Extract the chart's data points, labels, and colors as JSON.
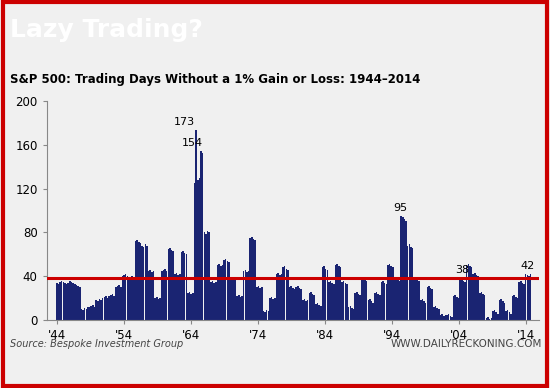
{
  "title_main": "Lazy Trading?",
  "subtitle": "S&P 500: Trading Days Without a 1% Gain or Loss: 1944–2014",
  "source_text": "Source: Bespoke Investment Group",
  "watermark": "WWW.DAILYRECKONING.COM",
  "bar_color": "#1a2472",
  "line_color": "#cc0000",
  "line_y": 38,
  "xlabel_ticks": [
    "'44",
    "'54",
    "'64",
    "'74",
    "'84",
    "'94",
    "'04",
    "'14"
  ],
  "xlabel_tick_years": [
    1944,
    1954,
    1964,
    1974,
    1984,
    1994,
    2004,
    2014
  ],
  "ylim": [
    0,
    200
  ],
  "yticks": [
    0,
    40,
    80,
    120,
    160,
    200
  ],
  "annotations": [
    {
      "x": 1963.0,
      "value": 173,
      "label": "173",
      "ha": "center"
    },
    {
      "x": 1964.25,
      "value": 154,
      "label": "154",
      "ha": "center"
    },
    {
      "x": 1995.25,
      "value": 95,
      "label": "95",
      "ha": "center"
    },
    {
      "x": 2004.5,
      "value": 38,
      "label": "38",
      "ha": "center"
    },
    {
      "x": 2014.25,
      "value": 42,
      "label": "42",
      "ha": "center"
    }
  ],
  "bg_color": "#f0f0f0",
  "title_bg": "#1a1a1a",
  "subtitle_bg": "#d8d8d8",
  "plot_bg": "#f0f0f0",
  "data": [
    34,
    33,
    35,
    36,
    35,
    34,
    33,
    34,
    36,
    35,
    34,
    33,
    32,
    31,
    30,
    10,
    9,
    11,
    10,
    12,
    12,
    13,
    14,
    12,
    18,
    17,
    19,
    18,
    20,
    21,
    22,
    20,
    22,
    23,
    24,
    22,
    30,
    31,
    32,
    30,
    40,
    41,
    42,
    40,
    38,
    39,
    40,
    38,
    72,
    73,
    71,
    70,
    68,
    67,
    69,
    68,
    45,
    46,
    44,
    45,
    20,
    21,
    19,
    20,
    45,
    46,
    47,
    45,
    65,
    66,
    64,
    63,
    42,
    43,
    41,
    42,
    62,
    63,
    61,
    60,
    25,
    26,
    24,
    25,
    125,
    173,
    128,
    130,
    154,
    152,
    80,
    79,
    81,
    80,
    35,
    36,
    34,
    35,
    50,
    51,
    49,
    50,
    55,
    56,
    54,
    53,
    38,
    39,
    37,
    38,
    22,
    23,
    21,
    22,
    45,
    46,
    44,
    45,
    75,
    76,
    74,
    73,
    30,
    31,
    29,
    30,
    8,
    7,
    9,
    8,
    20,
    21,
    19,
    20,
    42,
    43,
    41,
    42,
    48,
    49,
    47,
    46,
    30,
    31,
    29,
    28,
    30,
    31,
    29,
    28,
    18,
    19,
    17,
    18,
    25,
    26,
    24,
    23,
    15,
    16,
    14,
    13,
    48,
    49,
    47,
    46,
    35,
    36,
    34,
    33,
    50,
    51,
    49,
    48,
    35,
    36,
    34,
    33,
    12,
    13,
    11,
    10,
    25,
    26,
    24,
    23,
    38,
    39,
    37,
    36,
    18,
    19,
    17,
    16,
    25,
    26,
    24,
    23,
    35,
    36,
    34,
    33,
    50,
    51,
    49,
    48,
    38,
    39,
    37,
    36,
    95,
    94,
    92,
    90,
    68,
    69,
    67,
    66,
    38,
    39,
    37,
    36,
    18,
    19,
    17,
    16,
    30,
    31,
    29,
    28,
    12,
    13,
    11,
    10,
    5,
    6,
    4,
    5,
    5,
    6,
    4,
    3,
    22,
    23,
    21,
    20,
    38,
    37,
    36,
    35,
    50,
    51,
    49,
    48,
    42,
    43,
    41,
    40,
    25,
    26,
    24,
    23,
    2,
    3,
    1,
    2,
    8,
    9,
    7,
    6,
    18,
    19,
    17,
    16,
    8,
    9,
    7,
    6,
    22,
    23,
    21,
    20,
    35,
    36,
    34,
    33,
    42,
    41,
    40,
    42
  ]
}
